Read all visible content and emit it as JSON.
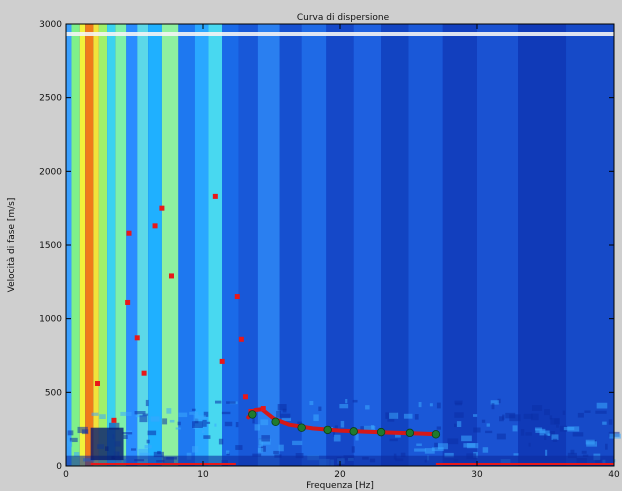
{
  "chart_data": {
    "type": "heatmap",
    "title": "Curva di dispersione",
    "xlabel": "Frequenza [Hz]",
    "ylabel": "Velocità di fase [m/s]",
    "xlim": [
      0,
      40
    ],
    "ylim": [
      0,
      3000
    ],
    "x_ticks": [
      "0",
      "10",
      "20",
      "30",
      "40"
    ],
    "y_ticks": [
      "0",
      "500",
      "1000",
      "1500",
      "2000",
      "2500",
      "3000"
    ],
    "colormap": "jet",
    "colors": {
      "background": "#0a3fcf",
      "frame": "#000000",
      "scatter_points": "#e8181a",
      "picked_points": "#1f7a2e",
      "dispersion_curve": "#d51818"
    },
    "spectrum_bands": [
      {
        "x0": 0.0,
        "x1": 0.4,
        "color": "#3aa0ff"
      },
      {
        "x0": 0.4,
        "x1": 1.0,
        "color": "#7ff08a"
      },
      {
        "x0": 1.0,
        "x1": 1.4,
        "color": "#f2f23a"
      },
      {
        "x0": 1.4,
        "x1": 2.0,
        "color": "#f07a1a"
      },
      {
        "x0": 2.0,
        "x1": 2.4,
        "color": "#f2e23a"
      },
      {
        "x0": 2.4,
        "x1": 3.0,
        "color": "#9ff06a"
      },
      {
        "x0": 3.0,
        "x1": 3.6,
        "color": "#3ad2f0"
      },
      {
        "x0": 3.6,
        "x1": 4.4,
        "color": "#7ff0a8"
      },
      {
        "x0": 4.4,
        "x1": 5.2,
        "color": "#2a8cff"
      },
      {
        "x0": 5.2,
        "x1": 6.0,
        "color": "#5cd8e8"
      },
      {
        "x0": 6.0,
        "x1": 7.0,
        "color": "#1fb0ff"
      },
      {
        "x0": 7.0,
        "x1": 8.2,
        "color": "#8ff0a0"
      },
      {
        "x0": 8.2,
        "x1": 9.4,
        "color": "#1e78f0"
      },
      {
        "x0": 9.4,
        "x1": 10.4,
        "color": "#2aa8ff"
      },
      {
        "x0": 10.4,
        "x1": 11.4,
        "color": "#48d8f0"
      },
      {
        "x0": 11.4,
        "x1": 12.6,
        "color": "#1a6ae8"
      },
      {
        "x0": 12.6,
        "x1": 14.0,
        "color": "#1858d8"
      },
      {
        "x0": 14.0,
        "x1": 15.6,
        "color": "#2a7ff0"
      },
      {
        "x0": 15.6,
        "x1": 17.2,
        "color": "#1650d0"
      },
      {
        "x0": 17.2,
        "x1": 19.0,
        "color": "#1f6ae6"
      },
      {
        "x0": 19.0,
        "x1": 21.0,
        "color": "#1548c8"
      },
      {
        "x0": 21.0,
        "x1": 23.0,
        "color": "#1e60e0"
      },
      {
        "x0": 23.0,
        "x1": 25.0,
        "color": "#1244c2"
      },
      {
        "x0": 25.0,
        "x1": 27.5,
        "color": "#1a58d8"
      },
      {
        "x0": 27.5,
        "x1": 30.0,
        "color": "#123fbe"
      },
      {
        "x0": 30.0,
        "x1": 33.0,
        "color": "#1a52d2"
      },
      {
        "x0": 33.0,
        "x1": 36.5,
        "color": "#103ab8"
      },
      {
        "x0": 36.5,
        "x1": 40.0,
        "color": "#164ac8"
      }
    ],
    "series": [
      {
        "role": "scatter_points",
        "points": [
          {
            "x": 2.3,
            "y": 560
          },
          {
            "x": 3.5,
            "y": 310
          },
          {
            "x": 4.6,
            "y": 1580
          },
          {
            "x": 4.5,
            "y": 1110
          },
          {
            "x": 5.2,
            "y": 870
          },
          {
            "x": 5.7,
            "y": 630
          },
          {
            "x": 6.5,
            "y": 1630
          },
          {
            "x": 7.0,
            "y": 1750
          },
          {
            "x": 7.7,
            "y": 1290
          },
          {
            "x": 10.9,
            "y": 1830
          },
          {
            "x": 11.4,
            "y": 710
          },
          {
            "x": 12.5,
            "y": 1150
          },
          {
            "x": 12.8,
            "y": 860
          },
          {
            "x": 13.1,
            "y": 470
          },
          {
            "x": 13.5,
            "y": 370
          },
          {
            "x": 14.4,
            "y": 390
          }
        ]
      },
      {
        "role": "picked_points",
        "points": [
          {
            "x": 13.6,
            "y": 350
          },
          {
            "x": 15.3,
            "y": 300
          },
          {
            "x": 17.2,
            "y": 260
          },
          {
            "x": 19.1,
            "y": 245
          },
          {
            "x": 21.0,
            "y": 235
          },
          {
            "x": 23.0,
            "y": 230
          },
          {
            "x": 25.1,
            "y": 225
          },
          {
            "x": 27.0,
            "y": 215
          }
        ]
      },
      {
        "role": "dispersion_curve",
        "points": [
          {
            "x": 13.3,
            "y": 330
          },
          {
            "x": 13.8,
            "y": 380
          },
          {
            "x": 14.3,
            "y": 385
          },
          {
            "x": 15.2,
            "y": 320
          },
          {
            "x": 16.3,
            "y": 280
          },
          {
            "x": 18.0,
            "y": 255
          },
          {
            "x": 20.0,
            "y": 240
          },
          {
            "x": 22.0,
            "y": 232
          },
          {
            "x": 24.0,
            "y": 226
          },
          {
            "x": 26.0,
            "y": 220
          },
          {
            "x": 27.1,
            "y": 215
          }
        ]
      }
    ],
    "axis_marker_bars": [
      {
        "x0": 1.8,
        "x1": 12.4
      },
      {
        "x0": 27.0,
        "x1": 40.0
      }
    ]
  }
}
